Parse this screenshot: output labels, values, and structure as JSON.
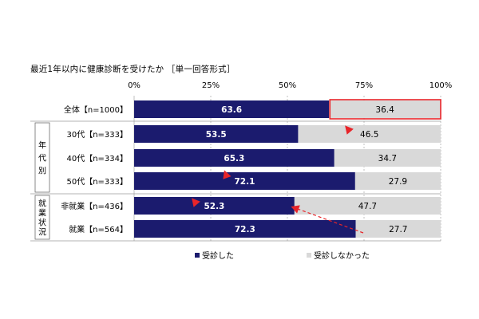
{
  "chart_data": {
    "type": "bar",
    "stacked": true,
    "orientation": "horizontal",
    "title": "最近1年以内に健康診断を受けたか ［単一回答形式］",
    "xlim": [
      0,
      100
    ],
    "x_ticks": [
      "0%",
      "25%",
      "50%",
      "75%",
      "100%"
    ],
    "grid": true,
    "legend_position": "bottom",
    "categories": [
      "全体【n=1000】",
      "30代【n=333】",
      "40代【n=334】",
      "50代【n=333】",
      "非就業【n=436】",
      "就業【n=564】"
    ],
    "groups": [
      {
        "label": "年代別",
        "members": [
          "30代【n=333】",
          "40代【n=334】",
          "50代【n=333】"
        ]
      },
      {
        "label": "就業状況",
        "members": [
          "非就業【n=436】",
          "就業【n=564】"
        ]
      }
    ],
    "series": [
      {
        "name": "受診した",
        "color": "#1b1b6e",
        "values": [
          63.6,
          53.5,
          65.3,
          72.1,
          52.3,
          72.3
        ]
      },
      {
        "name": "受診しなかった",
        "color": "#d9d9d9",
        "values": [
          36.4,
          46.5,
          34.7,
          27.9,
          47.7,
          27.7
        ]
      }
    ],
    "value_labels": [
      [
        "63.6",
        "36.4"
      ],
      [
        "53.5",
        "46.5"
      ],
      [
        "65.3",
        "34.7"
      ],
      [
        "72.1",
        "27.9"
      ],
      [
        "52.3",
        "47.7"
      ],
      [
        "72.3",
        "27.7"
      ]
    ],
    "highlight_color": "#e8252a"
  }
}
